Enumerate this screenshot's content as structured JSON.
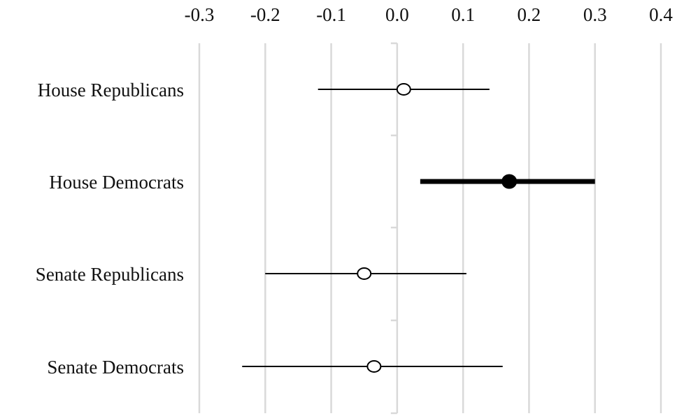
{
  "chart_data": {
    "type": "scatter",
    "subtype": "coefficient-plot",
    "title": "",
    "xlabel": "",
    "ylabel": "",
    "xlim": [
      -0.3,
      0.4
    ],
    "x_ticks": [
      -0.3,
      -0.2,
      -0.1,
      0.0,
      0.1,
      0.2,
      0.3,
      0.4
    ],
    "x_tick_labels": [
      "-0.3",
      "-0.2",
      "-0.1",
      "0.0",
      "0.1",
      "0.2",
      "0.3",
      "0.4"
    ],
    "axis_position": "top",
    "grid": true,
    "categories": [
      "House Republicans",
      "House Democrats",
      "Senate Republicans",
      "Senate Democrats"
    ],
    "estimates": [
      0.01,
      0.17,
      -0.05,
      -0.035
    ],
    "ci_low": [
      -0.12,
      0.035,
      -0.2,
      -0.235
    ],
    "ci_high": [
      0.14,
      0.3,
      0.105,
      0.16
    ],
    "significant": [
      false,
      true,
      false,
      false
    ],
    "colors": {
      "marker": "#000000",
      "grid": "#d9d9d9",
      "zero_line": "#d9d9d9"
    }
  }
}
